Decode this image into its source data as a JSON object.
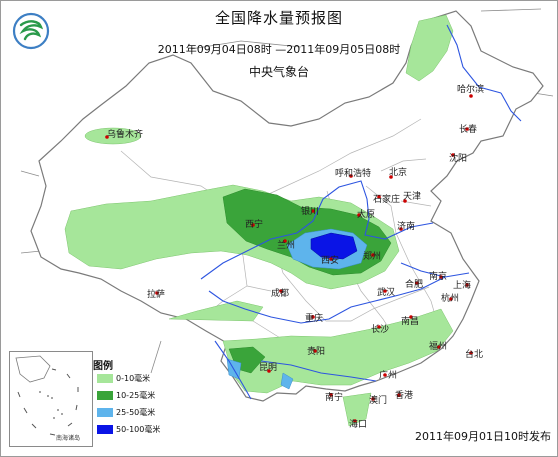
{
  "title": "全国降水量预报图",
  "period": "2011年09月04日08时 —2011年09月05日08时",
  "agency": "中央气象台",
  "issued": "2011年09月01日10时发布",
  "legend": {
    "title": "图例",
    "items": [
      {
        "label": "0-10毫米",
        "color": "#a6e69a"
      },
      {
        "label": "10-25毫米",
        "color": "#3aa43a"
      },
      {
        "label": "25-50毫米",
        "color": "#5eb4ec"
      },
      {
        "label": "50-100毫米",
        "color": "#0a14e6"
      }
    ]
  },
  "inset_label": "南海诸岛",
  "cities": {
    "haerbin": "哈尔滨",
    "changchun": "长春",
    "shenyang": "沈阳",
    "wulumuqi": "乌鲁木齐",
    "huhehaote": "呼和浩特",
    "beijing": "北京",
    "tianjin": "天津",
    "shijiazhuang": "石家庄",
    "taiyuan": "太原",
    "yinchuan": "银川",
    "xining": "西宁",
    "lanzhou": "兰州",
    "jinan": "济南",
    "zhengzhou": "郑州",
    "xian": "西安",
    "nanjing": "南京",
    "hefei": "合肥",
    "shanghai": "上海",
    "lasa": "拉萨",
    "chengdu": "成都",
    "wuhan": "武汉",
    "hangzhou": "杭州",
    "chongqing": "重庆",
    "changsha": "长沙",
    "nanchang": "南昌",
    "guiyang": "贵阳",
    "fuzhou": "福州",
    "taibei": "台北",
    "kunming": "昆明",
    "guangzhou": "广州",
    "nanning": "南宁",
    "aomen": "澳门",
    "xianggang": "香港",
    "haikou": "海口"
  }
}
